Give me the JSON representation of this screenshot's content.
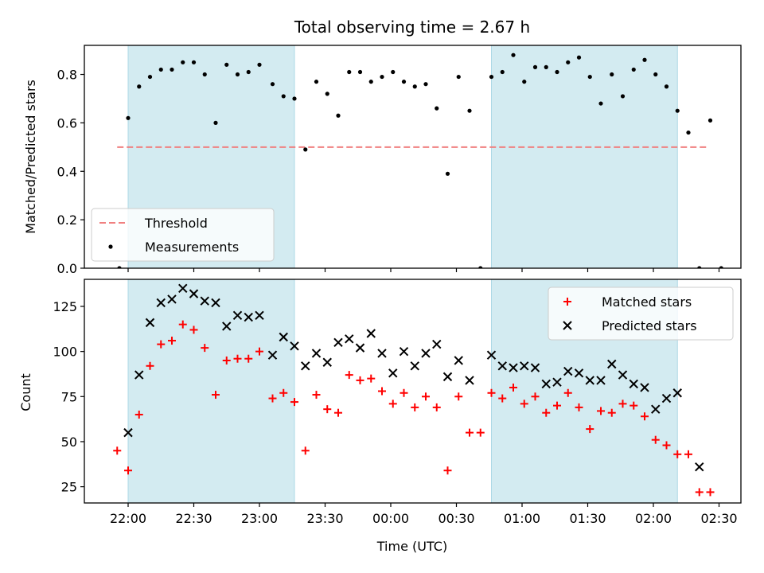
{
  "chart_data": [
    {
      "type": "scatter",
      "title": "Total observing time = 2.67 h",
      "xlabel": "",
      "ylabel": "Matched/Predicted stars",
      "xlim": [
        "21:40",
        "02:40"
      ],
      "ylim": [
        0,
        0.92
      ],
      "yticks": [
        "0.0",
        "0.2",
        "0.4",
        "0.6",
        "0.8"
      ],
      "shaded_intervals": [
        [
          "22:00",
          "23:16"
        ],
        [
          "00:46",
          "02:11"
        ]
      ],
      "shade_color": "#d3ebf1",
      "legend": {
        "position": "lower-left",
        "entries": [
          {
            "label": "Threshold",
            "marker": "dashed-line",
            "color": "#f08080"
          },
          {
            "label": "Measurements",
            "marker": "dot",
            "color": "#000000"
          }
        ]
      },
      "series": [
        {
          "name": "Threshold",
          "kind": "hline",
          "color": "#f08080",
          "y": 0.5,
          "x_range": [
            "21:55",
            "02:25"
          ]
        },
        {
          "name": "Measurements",
          "kind": "scatter",
          "color": "#000000",
          "points": [
            [
              "21:56",
              0.0
            ],
            [
              "22:00",
              0.62
            ],
            [
              "22:05",
              0.75
            ],
            [
              "22:10",
              0.79
            ],
            [
              "22:15",
              0.82
            ],
            [
              "22:20",
              0.82
            ],
            [
              "22:25",
              0.85
            ],
            [
              "22:30",
              0.85
            ],
            [
              "22:35",
              0.8
            ],
            [
              "22:40",
              0.6
            ],
            [
              "22:45",
              0.84
            ],
            [
              "22:50",
              0.8
            ],
            [
              "22:55",
              0.81
            ],
            [
              "23:00",
              0.84
            ],
            [
              "23:06",
              0.76
            ],
            [
              "23:11",
              0.71
            ],
            [
              "23:16",
              0.7
            ],
            [
              "23:21",
              0.49
            ],
            [
              "23:26",
              0.77
            ],
            [
              "23:31",
              0.72
            ],
            [
              "23:36",
              0.63
            ],
            [
              "23:41",
              0.81
            ],
            [
              "23:46",
              0.81
            ],
            [
              "23:51",
              0.77
            ],
            [
              "23:56",
              0.79
            ],
            [
              "00:01",
              0.81
            ],
            [
              "00:06",
              0.77
            ],
            [
              "00:11",
              0.75
            ],
            [
              "00:16",
              0.76
            ],
            [
              "00:21",
              0.66
            ],
            [
              "00:26",
              0.39
            ],
            [
              "00:31",
              0.79
            ],
            [
              "00:36",
              0.65
            ],
            [
              "00:41",
              0.0
            ],
            [
              "00:46",
              0.79
            ],
            [
              "00:51",
              0.81
            ],
            [
              "00:56",
              0.88
            ],
            [
              "01:01",
              0.77
            ],
            [
              "01:06",
              0.83
            ],
            [
              "01:11",
              0.83
            ],
            [
              "01:16",
              0.81
            ],
            [
              "01:21",
              0.85
            ],
            [
              "01:26",
              0.87
            ],
            [
              "01:31",
              0.79
            ],
            [
              "01:36",
              0.68
            ],
            [
              "01:41",
              0.8
            ],
            [
              "01:46",
              0.71
            ],
            [
              "01:51",
              0.82
            ],
            [
              "01:56",
              0.86
            ],
            [
              "02:01",
              0.8
            ],
            [
              "02:06",
              0.75
            ],
            [
              "02:11",
              0.65
            ],
            [
              "02:16",
              0.56
            ],
            [
              "02:21",
              0.0
            ],
            [
              "02:26",
              0.61
            ],
            [
              "02:31",
              0.0
            ]
          ]
        }
      ]
    },
    {
      "type": "scatter",
      "title": "",
      "xlabel": "Time (UTC)",
      "ylabel": "Count",
      "xlim": [
        "21:40",
        "02:40"
      ],
      "ylim": [
        16,
        140
      ],
      "yticks": [
        "25",
        "50",
        "75",
        "100",
        "125"
      ],
      "xticks": [
        "22:00",
        "22:30",
        "23:00",
        "23:30",
        "00:00",
        "00:30",
        "01:00",
        "01:30",
        "02:00",
        "02:30"
      ],
      "shaded_intervals": [
        [
          "22:00",
          "23:16"
        ],
        [
          "00:46",
          "02:11"
        ]
      ],
      "shade_color": "#d3ebf1",
      "legend": {
        "position": "upper-right",
        "entries": [
          {
            "label": "Matched stars",
            "marker": "plus",
            "color": "#ff0000"
          },
          {
            "label": "Predicted stars",
            "marker": "x",
            "color": "#000000"
          }
        ]
      },
      "series": [
        {
          "name": "Matched stars",
          "kind": "scatter",
          "marker": "plus",
          "color": "#ff0000",
          "points": [
            [
              "21:55",
              45
            ],
            [
              "22:00",
              34
            ],
            [
              "22:05",
              65
            ],
            [
              "22:10",
              92
            ],
            [
              "22:15",
              104
            ],
            [
              "22:20",
              106
            ],
            [
              "22:25",
              115
            ],
            [
              "22:30",
              112
            ],
            [
              "22:35",
              102
            ],
            [
              "22:40",
              76
            ],
            [
              "22:45",
              95
            ],
            [
              "22:50",
              96
            ],
            [
              "22:55",
              96
            ],
            [
              "23:00",
              100
            ],
            [
              "23:06",
              74
            ],
            [
              "23:11",
              77
            ],
            [
              "23:16",
              72
            ],
            [
              "23:21",
              45
            ],
            [
              "23:26",
              76
            ],
            [
              "23:31",
              68
            ],
            [
              "23:36",
              66
            ],
            [
              "23:41",
              87
            ],
            [
              "23:46",
              84
            ],
            [
              "23:51",
              85
            ],
            [
              "23:56",
              78
            ],
            [
              "00:01",
              71
            ],
            [
              "00:06",
              77
            ],
            [
              "00:11",
              69
            ],
            [
              "00:16",
              75
            ],
            [
              "00:21",
              69
            ],
            [
              "00:26",
              34
            ],
            [
              "00:31",
              75
            ],
            [
              "00:36",
              55
            ],
            [
              "00:41",
              55
            ],
            [
              "00:46",
              77
            ],
            [
              "00:51",
              74
            ],
            [
              "00:56",
              80
            ],
            [
              "01:01",
              71
            ],
            [
              "01:06",
              75
            ],
            [
              "01:11",
              66
            ],
            [
              "01:16",
              70
            ],
            [
              "01:21",
              77
            ],
            [
              "01:26",
              69
            ],
            [
              "01:31",
              57
            ],
            [
              "01:36",
              67
            ],
            [
              "01:41",
              66
            ],
            [
              "01:46",
              71
            ],
            [
              "01:51",
              70
            ],
            [
              "01:56",
              64
            ],
            [
              "02:01",
              51
            ],
            [
              "02:06",
              48
            ],
            [
              "02:11",
              43
            ],
            [
              "02:16",
              43
            ],
            [
              "02:21",
              22
            ],
            [
              "02:26",
              22
            ]
          ]
        },
        {
          "name": "Predicted stars",
          "kind": "scatter",
          "marker": "x",
          "color": "#000000",
          "points": [
            [
              "22:00",
              55
            ],
            [
              "22:05",
              87
            ],
            [
              "22:10",
              116
            ],
            [
              "22:15",
              127
            ],
            [
              "22:20",
              129
            ],
            [
              "22:25",
              135
            ],
            [
              "22:30",
              132
            ],
            [
              "22:35",
              128
            ],
            [
              "22:40",
              127
            ],
            [
              "22:45",
              114
            ],
            [
              "22:50",
              120
            ],
            [
              "22:55",
              119
            ],
            [
              "23:00",
              120
            ],
            [
              "23:06",
              98
            ],
            [
              "23:11",
              108
            ],
            [
              "23:16",
              103
            ],
            [
              "23:21",
              92
            ],
            [
              "23:26",
              99
            ],
            [
              "23:31",
              94
            ],
            [
              "23:36",
              105
            ],
            [
              "23:41",
              107
            ],
            [
              "23:46",
              102
            ],
            [
              "23:51",
              110
            ],
            [
              "23:56",
              99
            ],
            [
              "00:01",
              88
            ],
            [
              "00:06",
              100
            ],
            [
              "00:11",
              92
            ],
            [
              "00:16",
              99
            ],
            [
              "00:21",
              104
            ],
            [
              "00:26",
              86
            ],
            [
              "00:31",
              95
            ],
            [
              "00:36",
              84
            ],
            [
              "00:46",
              98
            ],
            [
              "00:51",
              92
            ],
            [
              "00:56",
              91
            ],
            [
              "01:01",
              92
            ],
            [
              "01:06",
              91
            ],
            [
              "01:11",
              82
            ],
            [
              "01:16",
              83
            ],
            [
              "01:21",
              89
            ],
            [
              "01:26",
              88
            ],
            [
              "01:31",
              84
            ],
            [
              "01:36",
              84
            ],
            [
              "01:41",
              93
            ],
            [
              "01:46",
              87
            ],
            [
              "01:51",
              82
            ],
            [
              "01:56",
              80
            ],
            [
              "02:01",
              68
            ],
            [
              "02:06",
              74
            ],
            [
              "02:11",
              77
            ],
            [
              "02:21",
              36
            ]
          ]
        }
      ]
    }
  ]
}
